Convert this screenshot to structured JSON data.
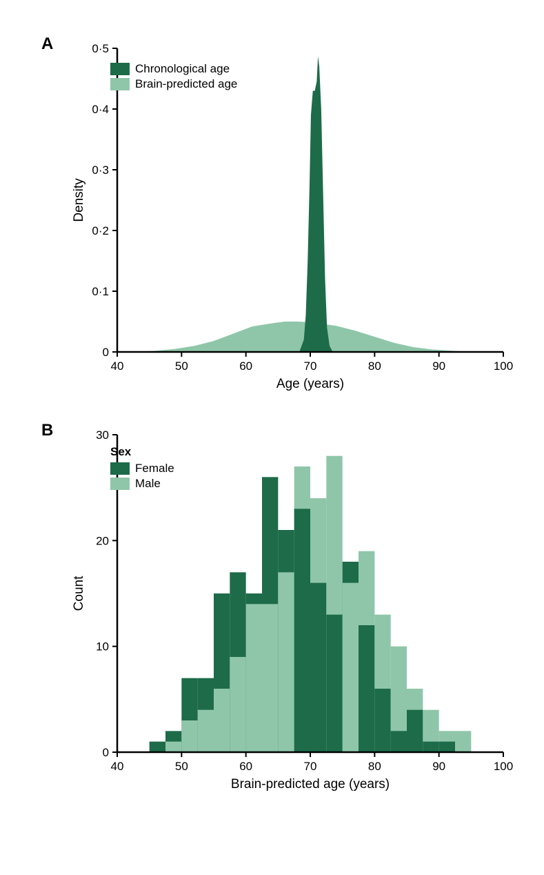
{
  "colors": {
    "dark": "#1d6b49",
    "light": "#8fc6a9",
    "axis": "#000000",
    "bg": "#ffffff"
  },
  "font": {
    "label_size": 19,
    "tick_size": 17,
    "panel_size": 24
  },
  "panelA": {
    "label": "A",
    "type": "density",
    "xlabel": "Age (years)",
    "ylabel": "Density",
    "xlim": [
      40,
      100
    ],
    "ylim": [
      0,
      0.5
    ],
    "xtick_step": 10,
    "ytick_step": 0.1,
    "ytick_labels": [
      "0",
      "0·1",
      "0·2",
      "0·3",
      "0·4",
      "0·5"
    ],
    "legend": {
      "items": [
        {
          "label": "Chronological age",
          "color_key": "dark"
        },
        {
          "label": "Brain-predicted age",
          "color_key": "light"
        }
      ]
    },
    "series_dark": [
      [
        68.3,
        0.0
      ],
      [
        69.0,
        0.02
      ],
      [
        69.3,
        0.06
      ],
      [
        69.6,
        0.15
      ],
      [
        69.9,
        0.28
      ],
      [
        70.1,
        0.39
      ],
      [
        70.4,
        0.43
      ],
      [
        70.7,
        0.43
      ],
      [
        71.0,
        0.445
      ],
      [
        71.2,
        0.487
      ],
      [
        71.4,
        0.47
      ],
      [
        71.7,
        0.4
      ],
      [
        72.0,
        0.26
      ],
      [
        72.3,
        0.12
      ],
      [
        72.6,
        0.04
      ],
      [
        73.0,
        0.01
      ],
      [
        73.5,
        0.0
      ]
    ],
    "series_light": [
      [
        43.0,
        0.0
      ],
      [
        46.0,
        0.002
      ],
      [
        49.0,
        0.005
      ],
      [
        52.0,
        0.01
      ],
      [
        55.0,
        0.018
      ],
      [
        58.0,
        0.03
      ],
      [
        61.0,
        0.042
      ],
      [
        64.0,
        0.047
      ],
      [
        66.0,
        0.05
      ],
      [
        68.0,
        0.05
      ],
      [
        70.0,
        0.049
      ],
      [
        72.0,
        0.046
      ],
      [
        74.0,
        0.043
      ],
      [
        77.0,
        0.035
      ],
      [
        80.0,
        0.025
      ],
      [
        83.0,
        0.015
      ],
      [
        86.0,
        0.008
      ],
      [
        89.0,
        0.004
      ],
      [
        92.0,
        0.002
      ],
      [
        95.0,
        0.0
      ]
    ]
  },
  "panelB": {
    "label": "B",
    "type": "histogram",
    "xlabel": "Brain-predicted age (years)",
    "ylabel": "Count",
    "xlim": [
      40,
      100
    ],
    "ylim": [
      0,
      30
    ],
    "xtick_step": 10,
    "ytick_step": 10,
    "legend": {
      "title": "Sex",
      "items": [
        {
          "label": "Female",
          "color_key": "dark"
        },
        {
          "label": "Male",
          "color_key": "light"
        }
      ]
    },
    "bin_width": 2.5,
    "bins_x": [
      45.0,
      47.5,
      50.0,
      52.5,
      55.0,
      57.5,
      60.0,
      62.5,
      65.0,
      67.5,
      70.0,
      72.5,
      75.0,
      77.5,
      80.0,
      82.5,
      85.0,
      87.5,
      90.0,
      92.5
    ],
    "female": [
      1,
      2,
      7,
      7,
      15,
      17,
      15,
      26,
      21,
      23,
      16,
      13,
      18,
      12,
      6,
      2,
      4,
      1,
      1,
      0
    ],
    "male": [
      0,
      1,
      3,
      4,
      6,
      9,
      14,
      14,
      17,
      27,
      24,
      28,
      16,
      19,
      13,
      10,
      6,
      4,
      2,
      2
    ]
  }
}
